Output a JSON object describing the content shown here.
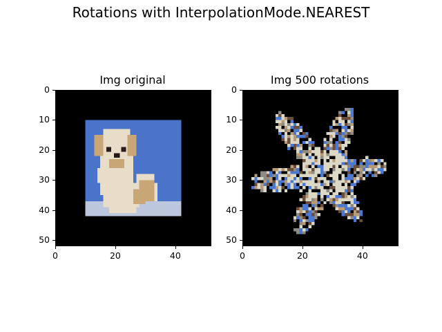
{
  "figure": {
    "suptitle": "Rotations with InterpolationMode.NEAREST"
  },
  "chart_data": [
    {
      "type": "image",
      "title": "Img original",
      "xlim": [
        0,
        52
      ],
      "ylim": [
        52,
        0
      ],
      "xticks": [
        0,
        20,
        40
      ],
      "yticks": [
        0,
        10,
        20,
        30,
        40,
        50
      ],
      "xtick_labels": [
        "0",
        "20",
        "40"
      ],
      "ytick_labels": [
        "0",
        "10",
        "20",
        "30",
        "40",
        "50"
      ],
      "background": "#000000",
      "image_content": "puppy photo (32x32 pixels) centered on black padding",
      "image_extent": [
        10,
        42,
        10,
        42
      ],
      "colors": {
        "background_blue": "#4a74c9",
        "fur_light": "#e8ddc8",
        "fur_tan": "#c9a675",
        "floor": "#bcc6dc"
      }
    },
    {
      "type": "image",
      "title": "Img 500 rotations",
      "xlim": [
        0,
        52
      ],
      "ylim": [
        52,
        0
      ],
      "xticks": [
        0,
        20,
        40
      ],
      "yticks": [
        0,
        10,
        20,
        30,
        40,
        50
      ],
      "xtick_labels": [
        "0",
        "20",
        "40"
      ],
      "ytick_labels": [
        "0",
        "10",
        "20",
        "30",
        "40",
        "50"
      ],
      "background": "#000000",
      "image_content": "star-shaped fragmented pixel pattern after repeated nearest-neighbor rotations",
      "colors": {
        "blue": "#4a78d2",
        "light": "#dcd8c6",
        "grey": "#8e8a84",
        "brown": "#6a4e3a",
        "tan": "#b89a76"
      }
    }
  ]
}
